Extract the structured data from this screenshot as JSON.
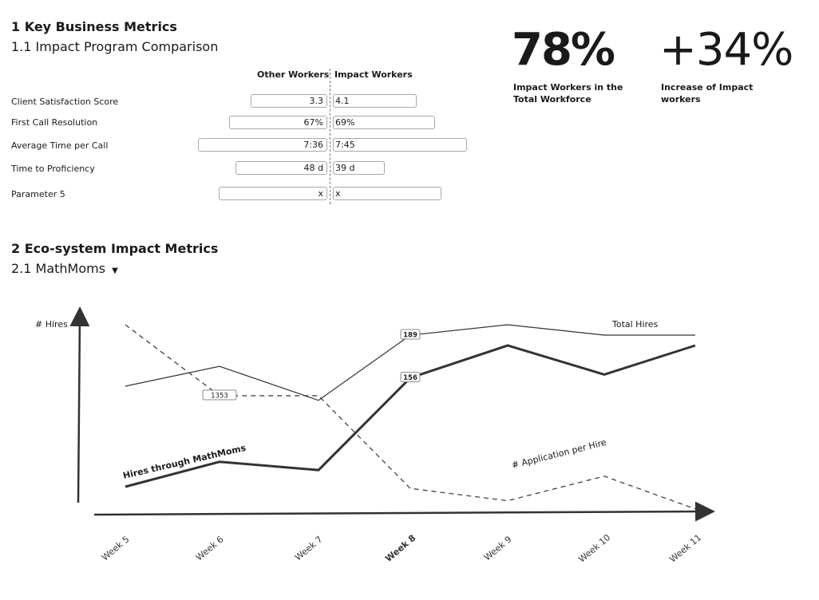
{
  "section1": {
    "title": "1 Key Business Metrics",
    "subtitle": "1.1 Impact Program Comparison",
    "col_other": "Other Workers",
    "col_impact": "Impact Workers",
    "rows": [
      {
        "label": "Client Satisfaction Score",
        "other": "3.3",
        "impact": "4.1"
      },
      {
        "label": "First Call Resolution",
        "other": "67%",
        "impact": "69%"
      },
      {
        "label": "Average Time per Call",
        "other": "7:36",
        "impact": "7:45"
      },
      {
        "label": "Time to Proficiency",
        "other": "48 d",
        "impact": "39 d"
      },
      {
        "label": "Parameter 5",
        "other": "x",
        "impact": "x"
      }
    ]
  },
  "kpis": [
    {
      "value": "78%",
      "caption_line1": "Impact Workers in the",
      "caption_line2": "Total Workforce"
    },
    {
      "value": "+34%",
      "caption_line1": "Increase of Impact",
      "caption_line2": "workers"
    }
  ],
  "section2": {
    "title": "2 Eco-system Impact Metrics",
    "dropdown_value": "2.1 MathMoms",
    "dropdown_caret": "▼"
  },
  "chart_data": {
    "type": "line",
    "y_axis_label": "# Hires",
    "categories": [
      "Week 5",
      "Week 6",
      "Week 7",
      "Week 8",
      "Week 9",
      "Week 10",
      "Week 11"
    ],
    "highlight_category": "Week 8",
    "series": [
      {
        "name": "Total Hires",
        "style": "thin",
        "values": [
          135,
          156,
          120,
          189,
          200,
          189,
          189
        ],
        "labels": [
          null,
          null,
          null,
          "189",
          null,
          null,
          null
        ]
      },
      {
        "name": "Hires through MathMoms",
        "style": "thick",
        "values": [
          25,
          55,
          45,
          156,
          195,
          160,
          195
        ],
        "labels": [
          null,
          null,
          null,
          "156",
          null,
          null,
          null
        ]
      },
      {
        "name": "# Application per Hire",
        "style": "dashed",
        "values": [
          1700,
          1353,
          1353,
          900,
          840,
          960,
          800
        ],
        "labels": [
          null,
          "1353",
          null,
          null,
          null,
          null,
          null
        ]
      }
    ]
  }
}
